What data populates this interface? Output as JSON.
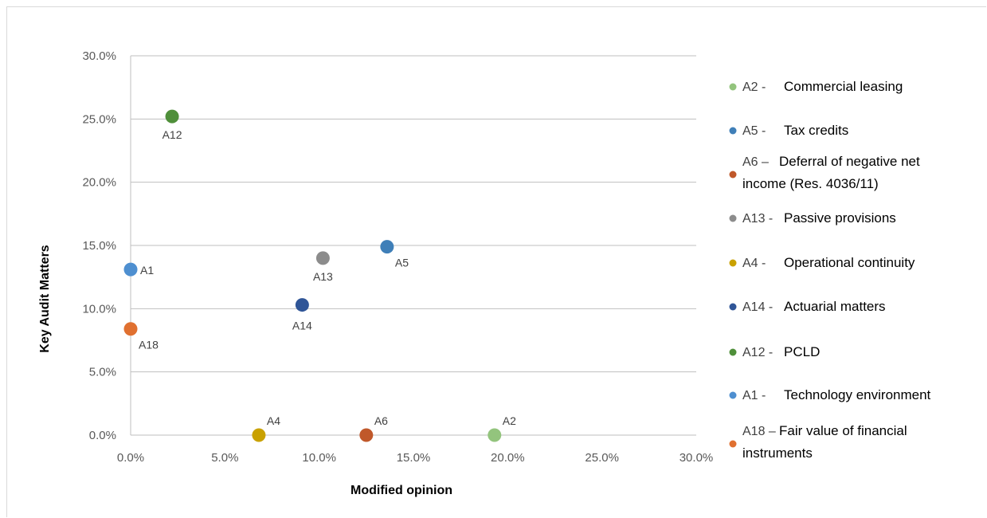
{
  "chart_data": {
    "type": "scatter",
    "title": "",
    "xlabel": "Modified opinion",
    "ylabel": "Key Audit Matters",
    "xlim": [
      0,
      0.3
    ],
    "ylim": [
      0,
      0.3
    ],
    "x_ticks": [
      "0.0%",
      "5.0%",
      "10.0%",
      "15.0%",
      "20.0%",
      "25.0%",
      "30.0%"
    ],
    "y_ticks": [
      "0.0%",
      "5.0%",
      "10.0%",
      "15.0%",
      "20.0%",
      "25.0%",
      "30.0%"
    ],
    "grid": "horizontal",
    "legend_position": "right",
    "series": [
      {
        "name": "A2 -",
        "desc": [
          "Commercial leasing"
        ],
        "label": "A2",
        "x": 0.193,
        "y": 0.0,
        "color": "#93c47d",
        "label_pos": "above-right"
      },
      {
        "name": "A5 -",
        "desc": [
          "Tax credits"
        ],
        "label": "A5",
        "x": 0.136,
        "y": 0.149,
        "color": "#3f7fb8",
        "label_pos": "below-right"
      },
      {
        "name": "A6 –",
        "desc": [
          "Deferral of negative net",
          "income (Res. 4036/11)"
        ],
        "label": "A6",
        "x": 0.125,
        "y": 0.0,
        "color": "#c0582a",
        "label_pos": "above-right"
      },
      {
        "name": "A13 -",
        "desc": [
          "Passive provisions"
        ],
        "label": "A13",
        "x": 0.102,
        "y": 0.14,
        "color": "#8c8c8c",
        "label_pos": "below"
      },
      {
        "name": "A4 -",
        "desc": [
          "Operational continuity"
        ],
        "label": "A4",
        "x": 0.068,
        "y": 0.0,
        "color": "#c9a100",
        "label_pos": "above-right"
      },
      {
        "name": "A14 -",
        "desc": [
          "Actuarial matters"
        ],
        "label": "A14",
        "x": 0.091,
        "y": 0.103,
        "color": "#2f5597",
        "label_pos": "below-left"
      },
      {
        "name": "A12 -",
        "desc": [
          "PCLD"
        ],
        "label": "A12",
        "x": 0.022,
        "y": 0.252,
        "color": "#4f8f3a",
        "label_pos": "below"
      },
      {
        "name": "A1 -",
        "desc": [
          "Technology environment"
        ],
        "label": "A1",
        "x": 0.0,
        "y": 0.131,
        "color": "#4e8fd0",
        "label_pos": "right"
      },
      {
        "name": "A18 –",
        "desc": [
          "Fair value of financial",
          "instruments"
        ],
        "label": "A18",
        "x": 0.0,
        "y": 0.084,
        "color": "#e07030",
        "label_pos": "below-right"
      }
    ]
  }
}
